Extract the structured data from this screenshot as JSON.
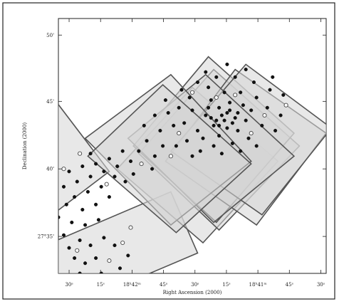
{
  "chart_data": {
    "type": "scatter",
    "title": "",
    "xlabel": "Right Ascension (2000)",
    "ylabel": "Declination (2000)",
    "x_tick_labels": [
      "30ˢ",
      "15ˢ",
      "18ʰ42ᵐ",
      "45ˢ",
      "30ˢ",
      "15ˢ",
      "18ʰ41ᵐ",
      "45ˢ",
      "30ˢ"
    ],
    "y_tick_labels": [
      "50'",
      "45'",
      "40'",
      "27°35'"
    ],
    "grid": false,
    "legend": "none",
    "footprint_fill": "#d6d6d6",
    "footprint_stroke": "#555555",
    "point_color_filled": "#111111",
    "point_color_open": "#ffffff",
    "fields": [
      {
        "corners": [
          [
            -0.37,
            0.41
          ],
          [
            -0.02,
            0.69
          ],
          [
            0.19,
            0.4
          ],
          [
            -0.16,
            0.12
          ]
        ]
      },
      {
        "corners": [
          [
            -0.05,
            0.11
          ],
          [
            0.42,
            0.32
          ],
          [
            0.52,
            0.08
          ],
          [
            0.05,
            -0.13
          ]
        ]
      },
      {
        "corners": [
          [
            0.22,
            0.41
          ],
          [
            0.5,
            0.73
          ],
          [
            0.82,
            0.44
          ],
          [
            0.54,
            0.12
          ]
        ]
      },
      {
        "corners": [
          [
            0.3,
            0.47
          ],
          [
            0.58,
            0.8
          ],
          [
            0.9,
            0.5
          ],
          [
            0.6,
            0.17
          ]
        ]
      },
      {
        "corners": [
          [
            0.28,
            0.5
          ],
          [
            0.56,
            0.85
          ],
          [
            0.88,
            0.55
          ],
          [
            0.59,
            0.2
          ]
        ]
      },
      {
        "corners": [
          [
            0.4,
            0.44
          ],
          [
            0.66,
            0.8
          ],
          [
            1.0,
            0.55
          ],
          [
            0.74,
            0.19
          ]
        ]
      },
      {
        "corners": [
          [
            0.42,
            0.48
          ],
          [
            0.7,
            0.82
          ],
          [
            1.02,
            0.57
          ],
          [
            0.76,
            0.23
          ]
        ]
      },
      {
        "corners": [
          [
            0.26,
            0.53
          ],
          [
            0.55,
            0.78
          ],
          [
            0.88,
            0.46
          ],
          [
            0.58,
            0.2
          ]
        ]
      },
      {
        "corners": [
          [
            0.1,
            0.53
          ],
          [
            0.42,
            0.78
          ],
          [
            0.72,
            0.44
          ],
          [
            0.42,
            0.19
          ]
        ]
      },
      {
        "corners": [
          [
            0.11,
            0.46
          ],
          [
            0.39,
            0.74
          ],
          [
            0.72,
            0.43
          ],
          [
            0.44,
            0.16
          ]
        ]
      }
    ],
    "points": [
      {
        "x": 0.55,
        "y": 0.62,
        "open": false
      },
      {
        "x": 0.6,
        "y": 0.65,
        "open": false
      },
      {
        "x": 0.62,
        "y": 0.6,
        "open": false
      },
      {
        "x": 0.58,
        "y": 0.58,
        "open": false
      },
      {
        "x": 0.64,
        "y": 0.64,
        "open": false
      },
      {
        "x": 0.66,
        "y": 0.61,
        "open": false
      },
      {
        "x": 0.52,
        "y": 0.56,
        "open": false
      },
      {
        "x": 0.57,
        "y": 0.68,
        "open": false
      },
      {
        "x": 0.69,
        "y": 0.66,
        "open": false
      },
      {
        "x": 0.7,
        "y": 0.6,
        "open": false
      },
      {
        "x": 0.63,
        "y": 0.57,
        "open": false
      },
      {
        "x": 0.5,
        "y": 0.64,
        "open": false
      },
      {
        "x": 0.47,
        "y": 0.59,
        "open": false
      },
      {
        "x": 0.54,
        "y": 0.53,
        "open": false
      },
      {
        "x": 0.6,
        "y": 0.54,
        "open": false
      },
      {
        "x": 0.67,
        "y": 0.56,
        "open": false
      },
      {
        "x": 0.72,
        "y": 0.64,
        "open": false
      },
      {
        "x": 0.74,
        "y": 0.69,
        "open": false
      },
      {
        "x": 0.68,
        "y": 0.71,
        "open": false
      },
      {
        "x": 0.62,
        "y": 0.71,
        "open": false
      },
      {
        "x": 0.56,
        "y": 0.73,
        "open": false
      },
      {
        "x": 0.49,
        "y": 0.69,
        "open": false
      },
      {
        "x": 0.45,
        "y": 0.65,
        "open": false
      },
      {
        "x": 0.43,
        "y": 0.58,
        "open": false
      },
      {
        "x": 0.48,
        "y": 0.52,
        "open": false
      },
      {
        "x": 0.53,
        "y": 0.48,
        "open": false
      },
      {
        "x": 0.58,
        "y": 0.5,
        "open": false
      },
      {
        "x": 0.65,
        "y": 0.51,
        "open": false
      },
      {
        "x": 0.71,
        "y": 0.53,
        "open": false
      },
      {
        "x": 0.76,
        "y": 0.58,
        "open": false
      },
      {
        "x": 0.78,
        "y": 0.65,
        "open": false
      },
      {
        "x": 0.79,
        "y": 0.72,
        "open": false
      },
      {
        "x": 0.73,
        "y": 0.75,
        "open": false
      },
      {
        "x": 0.66,
        "y": 0.77,
        "open": false
      },
      {
        "x": 0.59,
        "y": 0.77,
        "open": false
      },
      {
        "x": 0.52,
        "y": 0.75,
        "open": false
      },
      {
        "x": 0.46,
        "y": 0.72,
        "open": false
      },
      {
        "x": 0.41,
        "y": 0.63,
        "open": false
      },
      {
        "x": 0.38,
        "y": 0.56,
        "open": false
      },
      {
        "x": 0.44,
        "y": 0.5,
        "open": false
      },
      {
        "x": 0.5,
        "y": 0.46,
        "open": false
      },
      {
        "x": 0.61,
        "y": 0.47,
        "open": false
      },
      {
        "x": 0.68,
        "y": 0.48,
        "open": false
      },
      {
        "x": 0.74,
        "y": 0.5,
        "open": false
      },
      {
        "x": 0.81,
        "y": 0.56,
        "open": false
      },
      {
        "x": 0.83,
        "y": 0.62,
        "open": false
      },
      {
        "x": 0.84,
        "y": 0.7,
        "open": false
      },
      {
        "x": 0.8,
        "y": 0.77,
        "open": false
      },
      {
        "x": 0.7,
        "y": 0.8,
        "open": false
      },
      {
        "x": 0.63,
        "y": 0.82,
        "open": false
      },
      {
        "x": 0.55,
        "y": 0.79,
        "open": false
      },
      {
        "x": 0.61,
        "y": 0.62,
        "open": false
      },
      {
        "x": 0.59,
        "y": 0.6,
        "open": false
      },
      {
        "x": 0.63,
        "y": 0.63,
        "open": false
      },
      {
        "x": 0.57,
        "y": 0.61,
        "open": false
      },
      {
        "x": 0.65,
        "y": 0.59,
        "open": false
      },
      {
        "x": 0.6,
        "y": 0.58,
        "open": false
      },
      {
        "x": 0.56,
        "y": 0.65,
        "open": false
      },
      {
        "x": 0.64,
        "y": 0.67,
        "open": false
      },
      {
        "x": 0.67,
        "y": 0.63,
        "open": false
      },
      {
        "x": 0.39,
        "y": 0.5,
        "open": false
      },
      {
        "x": 0.36,
        "y": 0.46,
        "open": false
      },
      {
        "x": 0.33,
        "y": 0.52,
        "open": false
      },
      {
        "x": 0.3,
        "y": 0.48,
        "open": false
      },
      {
        "x": 0.27,
        "y": 0.44,
        "open": false
      },
      {
        "x": 0.24,
        "y": 0.48,
        "open": false
      },
      {
        "x": 0.22,
        "y": 0.42,
        "open": false
      },
      {
        "x": 0.19,
        "y": 0.45,
        "open": false
      },
      {
        "x": 0.28,
        "y": 0.39,
        "open": false
      },
      {
        "x": 0.25,
        "y": 0.36,
        "open": false
      },
      {
        "x": 0.21,
        "y": 0.38,
        "open": false
      },
      {
        "x": 0.17,
        "y": 0.4,
        "open": false
      },
      {
        "x": 0.14,
        "y": 0.43,
        "open": false
      },
      {
        "x": 0.12,
        "y": 0.38,
        "open": false
      },
      {
        "x": 0.09,
        "y": 0.42,
        "open": false
      },
      {
        "x": 0.07,
        "y": 0.36,
        "open": false
      },
      {
        "x": 0.04,
        "y": 0.4,
        "open": false
      },
      {
        "x": 0.02,
        "y": 0.34,
        "open": false
      },
      {
        "x": -0.01,
        "y": 0.37,
        "open": false
      },
      {
        "x": 0.06,
        "y": 0.3,
        "open": false
      },
      {
        "x": 0.11,
        "y": 0.32,
        "open": false
      },
      {
        "x": 0.16,
        "y": 0.34,
        "open": false
      },
      {
        "x": 0.19,
        "y": 0.3,
        "open": false
      },
      {
        "x": 0.14,
        "y": 0.27,
        "open": false
      },
      {
        "x": 0.09,
        "y": 0.25,
        "open": false
      },
      {
        "x": 0.03,
        "y": 0.27,
        "open": false
      },
      {
        "x": -0.03,
        "y": 0.29,
        "open": false
      },
      {
        "x": -0.07,
        "y": 0.26,
        "open": false
      },
      {
        "x": -0.12,
        "y": 0.22,
        "open": false
      },
      {
        "x": -0.16,
        "y": 0.26,
        "open": false
      },
      {
        "x": -0.2,
        "y": 0.22,
        "open": false
      },
      {
        "x": -0.24,
        "y": 0.26,
        "open": false
      },
      {
        "x": -0.27,
        "y": 0.2,
        "open": false
      },
      {
        "x": -0.22,
        "y": 0.16,
        "open": false
      },
      {
        "x": -0.17,
        "y": 0.18,
        "open": false
      },
      {
        "x": -0.1,
        "y": 0.16,
        "open": false
      },
      {
        "x": -0.05,
        "y": 0.2,
        "open": false
      },
      {
        "x": 0.0,
        "y": 0.22,
        "open": false
      },
      {
        "x": 0.05,
        "y": 0.2,
        "open": false
      },
      {
        "x": 0.1,
        "y": 0.19,
        "open": false
      },
      {
        "x": 0.15,
        "y": 0.21,
        "open": false
      },
      {
        "x": 0.02,
        "y": 0.15,
        "open": false
      },
      {
        "x": -0.02,
        "y": 0.12,
        "open": false
      },
      {
        "x": 0.04,
        "y": 0.1,
        "open": false
      },
      {
        "x": 0.08,
        "y": 0.13,
        "open": false
      },
      {
        "x": 0.12,
        "y": 0.11,
        "open": false
      },
      {
        "x": 0.17,
        "y": 0.14,
        "open": false
      },
      {
        "x": 0.21,
        "y": 0.11,
        "open": false
      },
      {
        "x": 0.06,
        "y": 0.06,
        "open": false
      },
      {
        "x": 0.1,
        "y": 0.04,
        "open": false
      },
      {
        "x": 0.14,
        "y": 0.06,
        "open": false
      },
      {
        "x": 0.08,
        "y": 0.0,
        "open": false
      },
      {
        "x": 0.12,
        "y": -0.02,
        "open": false
      },
      {
        "x": 0.16,
        "y": 0.0,
        "open": false
      },
      {
        "x": 0.1,
        "y": -0.06,
        "open": false
      },
      {
        "x": 0.14,
        "y": -0.09,
        "open": false
      },
      {
        "x": 0.17,
        "y": -0.05,
        "open": false
      },
      {
        "x": 0.2,
        "y": -0.08,
        "open": false
      },
      {
        "x": 0.23,
        "y": 0.02,
        "open": false
      },
      {
        "x": 0.26,
        "y": 0.07,
        "open": false
      },
      {
        "x": -0.08,
        "y": 0.38,
        "open": false
      },
      {
        "x": -0.13,
        "y": 0.34,
        "open": false
      },
      {
        "x": -0.18,
        "y": 0.32,
        "open": false
      },
      {
        "x": -0.23,
        "y": 0.31,
        "open": false
      },
      {
        "x": -0.29,
        "y": 0.29,
        "open": false
      },
      {
        "x": 0.32,
        "y": 0.58,
        "open": false
      },
      {
        "x": 0.36,
        "y": 0.62,
        "open": false
      },
      {
        "x": 0.4,
        "y": 0.68,
        "open": false
      },
      {
        "x": 0.35,
        "y": 0.41,
        "open": false
      },
      {
        "x": 0.12,
        "y": 0.47,
        "open": false
      },
      {
        "x": -0.04,
        "y": 0.44,
        "open": false
      },
      {
        "x": -0.14,
        "y": 0.38,
        "open": true
      },
      {
        "x": 0.18,
        "y": 0.35,
        "open": true
      },
      {
        "x": 0.31,
        "y": 0.43,
        "open": true
      },
      {
        "x": 0.24,
        "y": 0.12,
        "open": true
      },
      {
        "x": 0.19,
        "y": 0.05,
        "open": true
      },
      {
        "x": 0.07,
        "y": 0.09,
        "open": true
      },
      {
        "x": -0.05,
        "y": 0.07,
        "open": true
      },
      {
        "x": 0.27,
        "y": 0.18,
        "open": true
      },
      {
        "x": 0.15,
        "y": -0.03,
        "open": true
      },
      {
        "x": 0.21,
        "y": -0.03,
        "open": true
      },
      {
        "x": -0.1,
        "y": 0.28,
        "open": true
      },
      {
        "x": 0.02,
        "y": 0.41,
        "open": true
      },
      {
        "x": 0.45,
        "y": 0.55,
        "open": true
      },
      {
        "x": 0.66,
        "y": 0.7,
        "open": true
      },
      {
        "x": 0.77,
        "y": 0.62,
        "open": true
      },
      {
        "x": 0.5,
        "y": 0.71,
        "open": true
      },
      {
        "x": 0.72,
        "y": 0.55,
        "open": true
      },
      {
        "x": 0.59,
        "y": 0.69,
        "open": true
      },
      {
        "x": 0.85,
        "y": 0.66,
        "open": true
      },
      {
        "x": 0.08,
        "y": 0.47,
        "open": true
      },
      {
        "x": 0.42,
        "y": 0.46,
        "open": true
      }
    ]
  }
}
